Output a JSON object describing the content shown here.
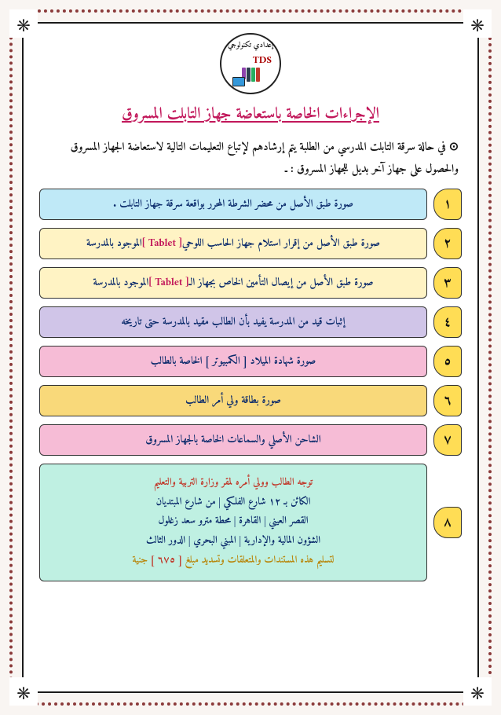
{
  "logo": {
    "top_text": "إعدادي تكنولوجي",
    "abbr": "TDS"
  },
  "title": "الإجراءات الخاصة باستعاضة جهاز التابلت المسروق",
  "intro": "⊙ في حالة سرقة التابلت المدرسي من الطلبة يتم إرشادهم لإتباع التعليمات التالية لاستعاضة الجهاز المسروق والحصول على جهاز آخر بديل للجهاز المسروق : ـ",
  "steps": [
    {
      "n": "١",
      "text_pre": "صورة طبق الأصل من محضر الشرطة المحرر بواقعة سرقة جهاز التابلت .",
      "bg": "#bfe9f7"
    },
    {
      "n": "٢",
      "text_pre": "صورة طبق الأصل من إقرار استلام جهاز الحاسب اللوحي ",
      "tword": "[ Tablet ]",
      "text_post": " الموجود بالمدرسة",
      "bg": "#fff3c4"
    },
    {
      "n": "٣",
      "text_pre": "صورة طبق الأصل من إيصال التأمين الخاص بجهاز الـ ",
      "tword": "[ Tablet ]",
      "text_post": " الموجود بالمدرسة",
      "bg": "#fff3c4"
    },
    {
      "n": "٤",
      "text_pre": "إثبات قيد من المدرسة يفيد بأن الطالب مقيد بالمدرسة حتى تاريخه",
      "bg": "#d0c5e8"
    },
    {
      "n": "٥",
      "text_pre": "صورة شهادة الميلاد [ الكمبيوتر ] الخاصة بالطالب",
      "bg": "#f6bcd6"
    },
    {
      "n": "٦",
      "text_pre": "صورة بطاقة ولي أمر الطالب",
      "bg": "#f9d97a"
    },
    {
      "n": "٧",
      "text_pre": "الشاحن الأصلي والسماعات الخاصة بالجهاز المسروق",
      "bg": "#f6bcd6"
    }
  ],
  "step8": {
    "n": "٨",
    "l1": "توجه الطالب وولي أمره لمقر وزارة التربية والتعليم",
    "l2": "الكائن بـ ١٢ شارع الفلكي | من شارع المبتديان",
    "l3": "القصر العيني | القاهرة | محطة مترو سعد زغلول",
    "l4": "الشؤون المالية والإدارية | المبني البحري | الدور الثالث",
    "l5_pre": "لتسليم هذه المستندات والمتعلقات وتسديد مبلغ ",
    "l5_amt": "[ ٦٧٥ ]",
    "l5_post": " جنية",
    "bg": "#bff0e2"
  },
  "colors": {
    "title": "#c2185b",
    "num_bg": "#ffdd55",
    "text_main": "#0a2a6b",
    "tablet_word": "#c2185b",
    "dot_border": "#8b3a3a",
    "frame_border": "#1a1a1a"
  }
}
